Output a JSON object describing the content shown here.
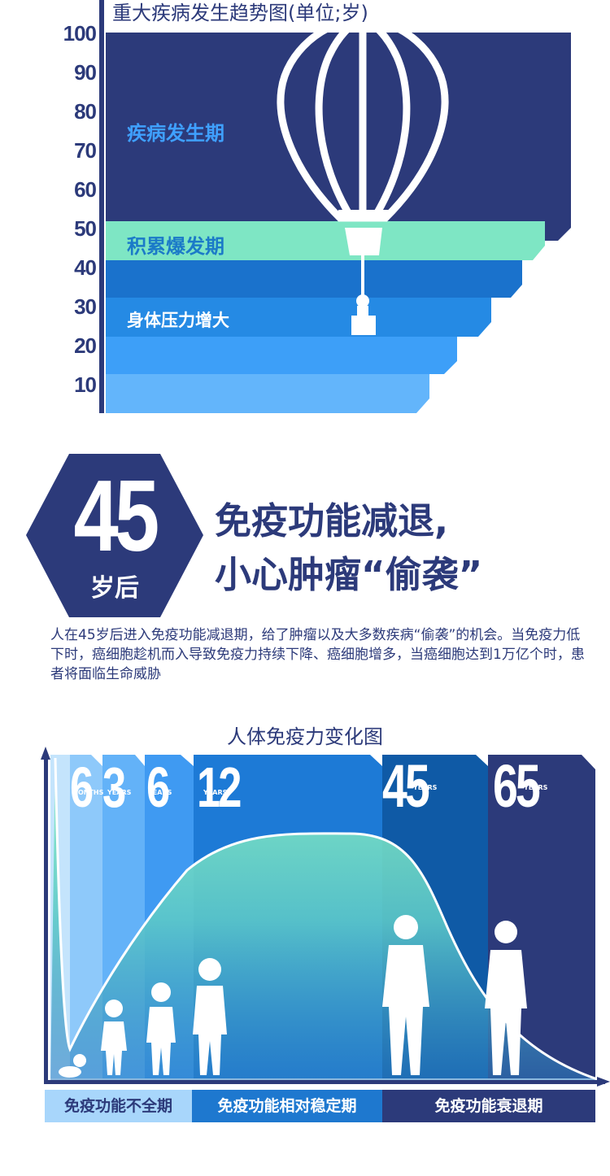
{
  "top_chart": {
    "title": "重大疾病发生趋势图(单位;岁)",
    "y_ticks": [
      "100",
      "90",
      "80",
      "70",
      "60",
      "50",
      "40",
      "30",
      "20",
      "10"
    ],
    "phases": [
      {
        "label": "疾病发生期",
        "color": "#2c3a7a",
        "text_color": "#3fa0ff"
      },
      {
        "label": "积累爆发期",
        "color": "#7ee6c4",
        "text_color": "#1b7ac8"
      },
      {
        "label": "身体压力增大",
        "color": "#1e78cf",
        "text_color": "#ffffff"
      }
    ],
    "bar_colors": [
      "#2c3a7a",
      "#7ee6c4",
      "#1a72cc",
      "#258ae4",
      "#3d9ff8",
      "#63b5fb"
    ]
  },
  "section": {
    "age_number": "45",
    "age_suffix": "岁后",
    "headline_1": "免疫功能减退,",
    "headline_2": "小心肿瘤“偷袭”",
    "paragraph": "人在45岁后进入免疫功能减退期，给了肿瘤以及大多数疾病“偷袭”的机会。当免疫力低下时，癌细胞趁机而入导致免疫力持续下降、癌细胞增多，当癌细胞达到1万亿个时，患者将面临生命威胁"
  },
  "bottom_chart": {
    "title": "人体免疫力变化图",
    "ages": [
      {
        "num": "6",
        "unit": "MONTHS"
      },
      {
        "num": "3",
        "unit": "YEARS"
      },
      {
        "num": "6",
        "unit": "YEARS"
      },
      {
        "num": "12",
        "unit": "YEARS"
      },
      {
        "num": "45",
        "unit": "YEARS"
      },
      {
        "num": "65",
        "unit": "YEARS"
      }
    ],
    "phases": [
      {
        "label": "免疫功能不全期",
        "bg": "#a8d6fb",
        "fg": "#2c3a7a"
      },
      {
        "label": "免疫功能相对稳定期",
        "bg": "#1e78cf",
        "fg": "#ffffff"
      },
      {
        "label": "免疫功能衰退期",
        "bg": "#2c3a7a",
        "fg": "#ffffff"
      }
    ]
  }
}
